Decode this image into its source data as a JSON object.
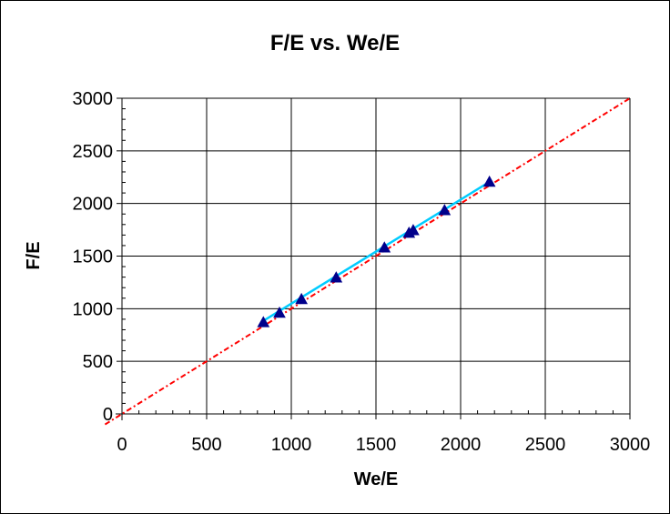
{
  "chart_data": {
    "type": "scatter",
    "title": "F/E vs. We/E",
    "xlabel": "We/E",
    "ylabel": "F/E",
    "xlim": [
      0,
      3000
    ],
    "ylim": [
      0,
      3000
    ],
    "xticks": [
      "0",
      "500",
      "1000",
      "1500",
      "2000",
      "2500",
      "3000"
    ],
    "yticks": [
      "0",
      "500",
      "1000",
      "1500",
      "2000",
      "2500",
      "3000"
    ],
    "grid": true,
    "legend": "none",
    "points": [
      {
        "x": 835,
        "y": 870
      },
      {
        "x": 930,
        "y": 960
      },
      {
        "x": 1060,
        "y": 1090
      },
      {
        "x": 1265,
        "y": 1295
      },
      {
        "x": 1550,
        "y": 1580
      },
      {
        "x": 1695,
        "y": 1720
      },
      {
        "x": 1720,
        "y": 1745
      },
      {
        "x": 1905,
        "y": 1935
      },
      {
        "x": 2170,
        "y": 2205
      }
    ],
    "fit_line": {
      "x": [
        835,
        2170
      ],
      "y": [
        885,
        2205
      ]
    },
    "reference_line": {
      "x": [
        -100,
        3000
      ],
      "y": [
        -100,
        3000
      ]
    },
    "colors": {
      "marker": "#00008b",
      "fit_line": "#00ccff",
      "reference_line": "#ff0000",
      "grid": "#000000"
    }
  }
}
